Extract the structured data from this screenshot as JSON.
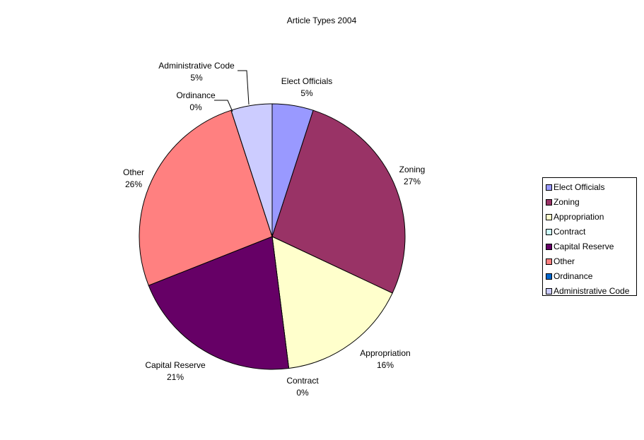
{
  "chart_data": {
    "type": "pie",
    "title": "Article Types 2004",
    "legend_position": "right",
    "slices": [
      {
        "label": "Elect Officials",
        "value": 5,
        "display": "5%",
        "color": "#9999FF"
      },
      {
        "label": "Zoning",
        "value": 27,
        "display": "27%",
        "color": "#993366"
      },
      {
        "label": "Appropriation",
        "value": 16,
        "display": "16%",
        "color": "#FFFFCC"
      },
      {
        "label": "Contract",
        "value": 0,
        "display": "0%",
        "color": "#CCFFFF"
      },
      {
        "label": "Capital Reserve",
        "value": 21,
        "display": "21%",
        "color": "#660066"
      },
      {
        "label": "Other",
        "value": 26,
        "display": "26%",
        "color": "#FF8080"
      },
      {
        "label": "Ordinance",
        "value": 0,
        "display": "0%",
        "color": "#0066CC"
      },
      {
        "label": "Administrative Code",
        "value": 5,
        "display": "5%",
        "color": "#CCCCFF"
      }
    ]
  }
}
